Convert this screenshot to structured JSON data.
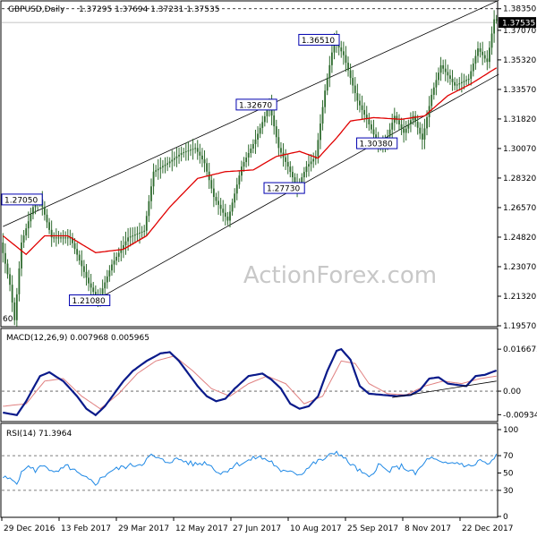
{
  "chart_data": {
    "type": "candlestick",
    "symbol_title": "GBPUSD,Daily",
    "ohlc_header": "1.37295 1.37694 1.37231 1.37535",
    "watermark": "ActionForex.com",
    "price_ticks": [
      "1.38350",
      "1.37070",
      "1.35320",
      "1.33570",
      "1.31820",
      "1.30070",
      "1.28320",
      "1.26570",
      "1.24820",
      "1.23070",
      "1.21320",
      "1.19570"
    ],
    "price_ylim": [
      1.1957,
      1.3876
    ],
    "current_price_label": "1.37535",
    "current_price": 1.37535,
    "x_labels": [
      "29 Dec 2016",
      "13 Feb 2017",
      "29 Mar 2017",
      "12 May 2017",
      "27 Jun 2017",
      "10 Aug 2017",
      "25 Sep 2017",
      "8 Nov 2017",
      "22 Dec 2017"
    ],
    "price_path": [
      [
        0,
        1.245
      ],
      [
        4,
        1.22
      ],
      [
        6,
        1.199
      ],
      [
        9,
        1.245
      ],
      [
        14,
        1.266
      ],
      [
        17,
        1.2705
      ],
      [
        22,
        1.248
      ],
      [
        30,
        1.248
      ],
      [
        38,
        1.2208
      ],
      [
        42,
        1.2108
      ],
      [
        48,
        1.232
      ],
      [
        55,
        1.248
      ],
      [
        62,
        1.252
      ],
      [
        66,
        1.287
      ],
      [
        72,
        1.292
      ],
      [
        78,
        1.298
      ],
      [
        84,
        1.301
      ],
      [
        88,
        1.292
      ],
      [
        92,
        1.272
      ],
      [
        98,
        1.258
      ],
      [
        104,
        1.29
      ],
      [
        110,
        1.306
      ],
      [
        116,
        1.3267
      ],
      [
        120,
        1.301
      ],
      [
        124,
        1.29
      ],
      [
        128,
        1.2773
      ],
      [
        132,
        1.29
      ],
      [
        136,
        1.296
      ],
      [
        140,
        1.335
      ],
      [
        144,
        1.3651
      ],
      [
        148,
        1.356
      ],
      [
        154,
        1.329
      ],
      [
        158,
        1.318
      ],
      [
        163,
        1.303
      ],
      [
        166,
        1.3038
      ],
      [
        170,
        1.32
      ],
      [
        174,
        1.31
      ],
      [
        178,
        1.32
      ],
      [
        182,
        1.306
      ],
      [
        186,
        1.3325
      ],
      [
        190,
        1.35
      ],
      [
        196,
        1.338
      ],
      [
        202,
        1.342
      ],
      [
        206,
        1.36
      ],
      [
        210,
        1.352
      ],
      [
        213,
        1.3772
      ]
    ],
    "ma_path": [
      [
        0,
        1.249
      ],
      [
        10,
        1.238
      ],
      [
        18,
        1.249
      ],
      [
        28,
        1.249
      ],
      [
        40,
        1.239
      ],
      [
        52,
        1.241
      ],
      [
        62,
        1.249
      ],
      [
        72,
        1.266
      ],
      [
        84,
        1.283
      ],
      [
        96,
        1.287
      ],
      [
        108,
        1.288
      ],
      [
        118,
        1.296
      ],
      [
        128,
        1.299
      ],
      [
        136,
        1.295
      ],
      [
        144,
        1.307
      ],
      [
        150,
        1.317
      ],
      [
        160,
        1.319
      ],
      [
        172,
        1.318
      ],
      [
        182,
        1.32
      ],
      [
        192,
        1.332
      ],
      [
        202,
        1.339
      ],
      [
        213,
        1.3485
      ]
    ],
    "channel_upper": [
      [
        0,
        1.2545
      ],
      [
        214,
        1.3885
      ]
    ],
    "channel_lower": [
      [
        40,
        1.2108
      ],
      [
        214,
        1.3447
      ]
    ],
    "annotations": [
      {
        "label": "1.27050",
        "bar": 1,
        "price": 1.2705
      },
      {
        "label": "1.21080",
        "bar": 31,
        "price": 1.2108
      },
      {
        "label": "1.32670",
        "bar": 103,
        "price": 1.3267
      },
      {
        "label": "1.27730",
        "bar": 115,
        "price": 1.2773
      },
      {
        "label": "1.36510",
        "bar": 130,
        "price": 1.3651
      },
      {
        "label": "1.30380",
        "bar": 155,
        "price": 1.3038
      }
    ],
    "partial_left_label": "60",
    "macd": {
      "title": "MACD(12,26,9) 0.007968 0.005965",
      "ticks": [
        "0.016672",
        "0.00",
        "-0.009345"
      ],
      "ylim": [
        -0.011,
        0.0185
      ],
      "macd_path": [
        [
          0,
          -0.0085
        ],
        [
          6,
          -0.0095
        ],
        [
          10,
          -0.004
        ],
        [
          16,
          0.006
        ],
        [
          20,
          0.0075
        ],
        [
          26,
          0.004
        ],
        [
          32,
          -0.002
        ],
        [
          36,
          -0.007
        ],
        [
          40,
          -0.0095
        ],
        [
          44,
          -0.006
        ],
        [
          48,
          -0.001
        ],
        [
          52,
          0.004
        ],
        [
          56,
          0.008
        ],
        [
          62,
          0.012
        ],
        [
          68,
          0.015
        ],
        [
          72,
          0.0155
        ],
        [
          76,
          0.012
        ],
        [
          80,
          0.007
        ],
        [
          84,
          0.002
        ],
        [
          88,
          -0.002
        ],
        [
          92,
          -0.004
        ],
        [
          96,
          -0.003
        ],
        [
          100,
          0.001
        ],
        [
          106,
          0.006
        ],
        [
          112,
          0.007
        ],
        [
          116,
          0.0045
        ],
        [
          120,
          0.001
        ],
        [
          124,
          -0.005
        ],
        [
          128,
          -0.007
        ],
        [
          132,
          -0.006
        ],
        [
          136,
          -0.002
        ],
        [
          140,
          0.008
        ],
        [
          144,
          0.016
        ],
        [
          146,
          0.0167
        ],
        [
          150,
          0.0125
        ],
        [
          154,
          0.002
        ],
        [
          158,
          -0.001
        ],
        [
          164,
          -0.0015
        ],
        [
          170,
          -0.002
        ],
        [
          176,
          -0.0015
        ],
        [
          180,
          0.0005
        ],
        [
          184,
          0.005
        ],
        [
          188,
          0.0055
        ],
        [
          192,
          0.003
        ],
        [
          196,
          0.0025
        ],
        [
          200,
          0.002
        ],
        [
          204,
          0.006
        ],
        [
          208,
          0.0065
        ],
        [
          213,
          0.0082
        ]
      ],
      "signal_path": [
        [
          0,
          -0.006
        ],
        [
          10,
          -0.005
        ],
        [
          18,
          0.004
        ],
        [
          26,
          0.005
        ],
        [
          34,
          -0.002
        ],
        [
          42,
          -0.007
        ],
        [
          50,
          -0.001
        ],
        [
          58,
          0.007
        ],
        [
          66,
          0.012
        ],
        [
          74,
          0.014
        ],
        [
          82,
          0.008
        ],
        [
          90,
          0.001
        ],
        [
          98,
          -0.002
        ],
        [
          106,
          0.003
        ],
        [
          114,
          0.006
        ],
        [
          122,
          0.003
        ],
        [
          130,
          -0.005
        ],
        [
          138,
          -0.002
        ],
        [
          146,
          0.012
        ],
        [
          152,
          0.011
        ],
        [
          158,
          0.003
        ],
        [
          166,
          -0.001
        ],
        [
          174,
          -0.0015
        ],
        [
          182,
          0.002
        ],
        [
          190,
          0.004
        ],
        [
          198,
          0.003
        ],
        [
          206,
          0.005
        ],
        [
          213,
          0.006
        ]
      ],
      "trendline": [
        [
          168,
          -0.0025
        ],
        [
          213,
          0.004
        ]
      ]
    },
    "rsi": {
      "title": "RSI(14) 71.3964",
      "ticks": [
        "100",
        "70",
        "50",
        "30",
        "0"
      ],
      "ylim": [
        0,
        100
      ],
      "levels": [
        70,
        30
      ],
      "path": [
        [
          0,
          45
        ],
        [
          6,
          40
        ],
        [
          10,
          58
        ],
        [
          14,
          53
        ],
        [
          18,
          60
        ],
        [
          22,
          49
        ],
        [
          28,
          58
        ],
        [
          34,
          46
        ],
        [
          40,
          38
        ],
        [
          46,
          52
        ],
        [
          52,
          57
        ],
        [
          60,
          61
        ],
        [
          64,
          70
        ],
        [
          70,
          63
        ],
        [
          76,
          66
        ],
        [
          82,
          60
        ],
        [
          88,
          62
        ],
        [
          94,
          49
        ],
        [
          100,
          59
        ],
        [
          106,
          64
        ],
        [
          110,
          69
        ],
        [
          116,
          63
        ],
        [
          120,
          50
        ],
        [
          124,
          54
        ],
        [
          128,
          48
        ],
        [
          134,
          61
        ],
        [
          140,
          68
        ],
        [
          144,
          75
        ],
        [
          148,
          65
        ],
        [
          154,
          52
        ],
        [
          158,
          44
        ],
        [
          162,
          60
        ],
        [
          166,
          52
        ],
        [
          172,
          58
        ],
        [
          178,
          49
        ],
        [
          184,
          68
        ],
        [
          190,
          60
        ],
        [
          196,
          62
        ],
        [
          202,
          57
        ],
        [
          206,
          65
        ],
        [
          210,
          59
        ],
        [
          213,
          71
        ]
      ]
    }
  }
}
